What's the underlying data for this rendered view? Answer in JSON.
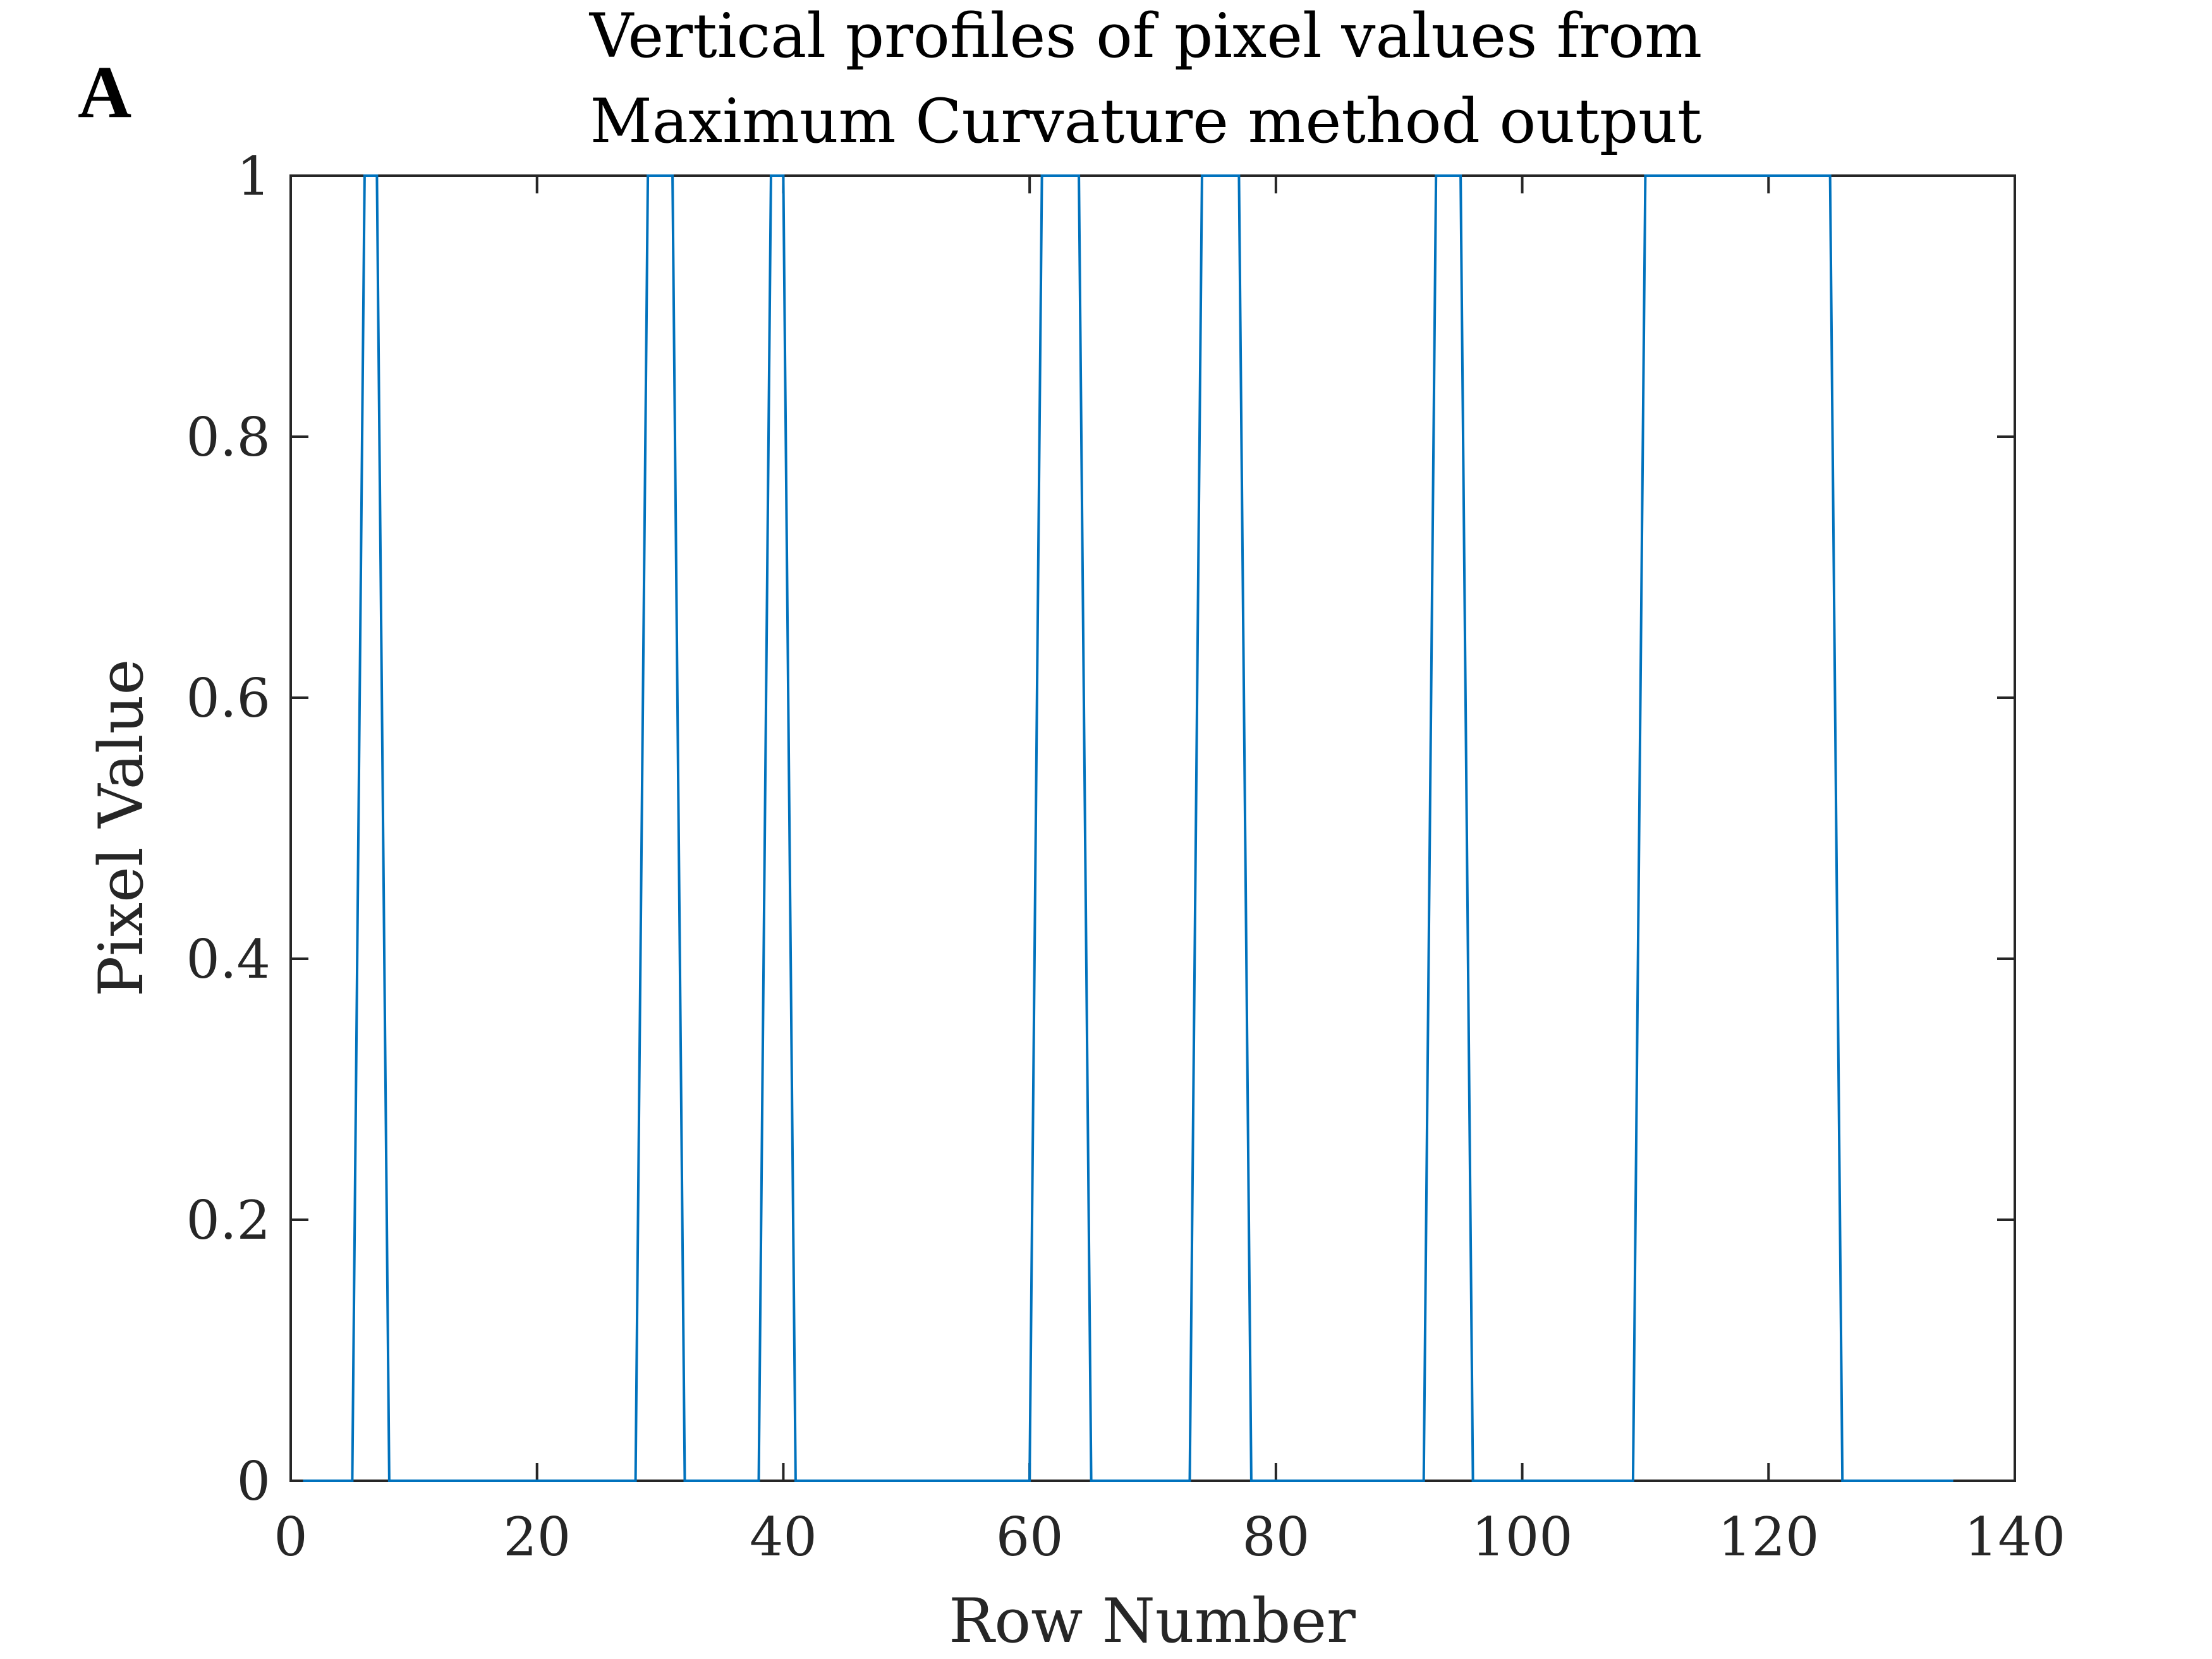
{
  "panel_label": "A",
  "chart_data": {
    "type": "line",
    "title": [
      "Vertical profiles of pixel values from",
      "Maximum Curvature method output"
    ],
    "xlabel": "Row Number",
    "ylabel": "Pixel Value",
    "xlim": [
      0,
      140
    ],
    "ylim": [
      0,
      1
    ],
    "xticks": [
      0,
      20,
      40,
      60,
      80,
      100,
      120,
      140
    ],
    "yticks": [
      0,
      0.2,
      0.4,
      0.6,
      0.8,
      1
    ],
    "xtick_labels": [
      "0",
      "20",
      "40",
      "60",
      "80",
      "100",
      "120",
      "140"
    ],
    "ytick_labels": [
      "0",
      "0.2",
      "0.4",
      "0.6",
      "0.8",
      "1"
    ],
    "grid": false,
    "line_color": "#0072bd",
    "axis_color": "#262626",
    "series": [
      {
        "x": [
          1,
          5,
          6,
          7,
          8,
          28,
          29,
          30,
          31,
          32,
          38,
          39,
          40,
          41,
          60,
          61,
          62,
          63,
          64,
          65,
          73,
          74,
          75,
          76,
          77,
          78,
          92,
          93,
          94,
          95,
          96,
          109,
          110,
          111,
          112,
          113,
          114,
          115,
          116,
          117,
          118,
          119,
          120,
          121,
          122,
          123,
          124,
          125,
          126,
          135
        ],
        "y": [
          0,
          0,
          1,
          1,
          0,
          0,
          1,
          1,
          1,
          0,
          0,
          1,
          1,
          0,
          0,
          1,
          1,
          1,
          1,
          0,
          0,
          1,
          1,
          1,
          1,
          0,
          0,
          1,
          1,
          1,
          0,
          0,
          1,
          1,
          1,
          1,
          1,
          1,
          1,
          1,
          1,
          1,
          1,
          1,
          1,
          1,
          1,
          1,
          0,
          0
        ]
      }
    ]
  }
}
